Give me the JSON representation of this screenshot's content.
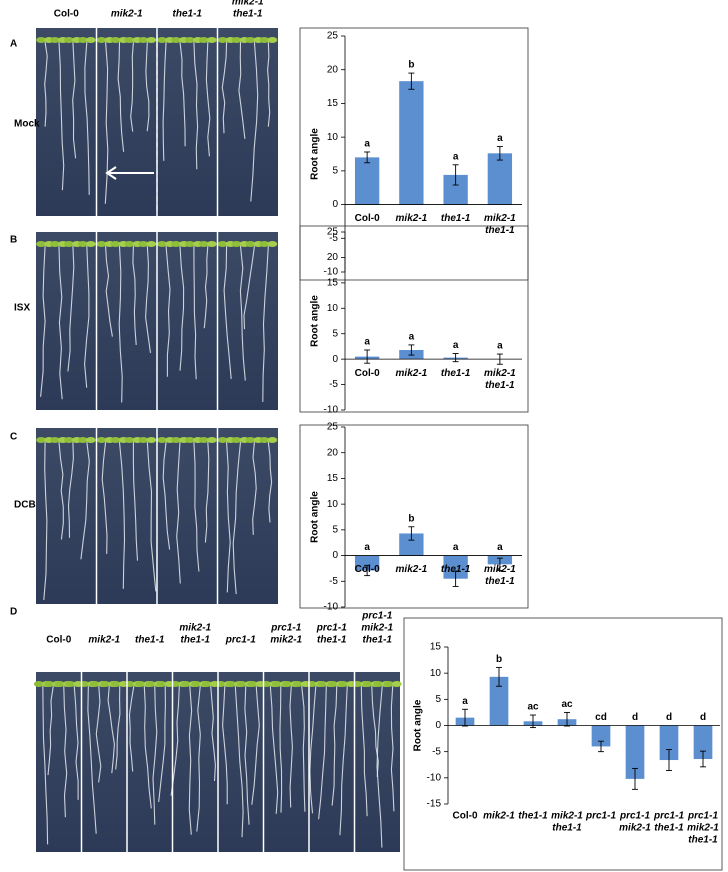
{
  "chart_data": [
    {
      "type": "bar",
      "panel": "A",
      "treatment": "Mock",
      "ylabel": "Root angle",
      "xlabel_position": "zero",
      "photo_labels": [
        [
          "Col-0"
        ],
        [
          "mik2-1"
        ],
        [
          "the1-1"
        ],
        [
          "mik2-1",
          "the1-1"
        ]
      ],
      "categories": [
        [
          "Col-0"
        ],
        [
          "mik2-1"
        ],
        [
          "the1-1"
        ],
        [
          "mik2-1",
          "the1-1"
        ]
      ],
      "values": [
        7,
        18.3,
        4.4,
        7.6
      ],
      "errors": [
        0.8,
        1.2,
        1.5,
        1.0
      ],
      "annotations": [
        "a",
        "b",
        "a",
        "a"
      ],
      "color": "#5b8fd0",
      "ylim": [
        -10,
        25
      ],
      "yticks": [
        -10,
        -5,
        0,
        5,
        10,
        15,
        20,
        25
      ]
    },
    {
      "type": "bar",
      "panel": "B",
      "treatment": "ISX",
      "ylabel": "Root angle",
      "xlabel_position": "zero",
      "categories": [
        [
          "Col-0"
        ],
        [
          "mik2-1"
        ],
        [
          "the1-1"
        ],
        [
          "mik2-1",
          "the1-1"
        ]
      ],
      "values": [
        0.5,
        1.8,
        0.3,
        0.0
      ],
      "errors": [
        1.3,
        1.0,
        0.8,
        1.0
      ],
      "annotations": [
        "a",
        "a",
        "a",
        "a"
      ],
      "color": "#5b8fd0",
      "ylim": [
        -10,
        25
      ],
      "yticks": [
        -10,
        -5,
        0,
        5,
        10,
        15,
        20,
        25
      ]
    },
    {
      "type": "bar",
      "panel": "C",
      "treatment": "DCB",
      "ylabel": "Root angle",
      "xlabel_position": "zero",
      "categories": [
        [
          "Col-0"
        ],
        [
          "mik2-1"
        ],
        [
          "the1-1"
        ],
        [
          "mik2-1",
          "the1-1"
        ]
      ],
      "values": [
        -2.9,
        4.3,
        -4.5,
        -1.7
      ],
      "errors": [
        1.0,
        1.3,
        1.5,
        1.2
      ],
      "annotations": [
        "a",
        "b",
        "a",
        "a"
      ],
      "color": "#5b8fd0",
      "ylim": [
        -10,
        25
      ],
      "yticks": [
        -10,
        -5,
        0,
        5,
        10,
        15,
        20,
        25
      ]
    },
    {
      "type": "bar",
      "panel": "D",
      "ylabel": "Root angle",
      "xlabel_position": "bottom",
      "photo_labels": [
        [
          "Col-0"
        ],
        [
          "mik2-1"
        ],
        [
          "the1-1"
        ],
        [
          "mik2-1",
          "the1-1"
        ],
        [
          "prc1-1"
        ],
        [
          "prc1-1",
          "mik2-1"
        ],
        [
          "prc1-1",
          "the1-1"
        ],
        [
          "prc1-1",
          "mik2-1",
          "the1-1"
        ]
      ],
      "categories": [
        [
          "Col-0"
        ],
        [
          "mik2-1"
        ],
        [
          "the1-1"
        ],
        [
          "mik2-1",
          "the1-1"
        ],
        [
          "prc1-1"
        ],
        [
          "prc1-1",
          "mik2-1"
        ],
        [
          "prc1-1",
          "the1-1"
        ],
        [
          "prc1-1",
          "mik2-1",
          "the1-1"
        ]
      ],
      "values": [
        1.5,
        9.3,
        0.8,
        1.2,
        -4.0,
        -10.2,
        -6.6,
        -6.4
      ],
      "errors": [
        1.6,
        1.8,
        1.2,
        1.3,
        1.0,
        2.0,
        2.0,
        1.5
      ],
      "annotations": [
        "a",
        "b",
        "ac",
        "ac",
        "cd",
        "d",
        "d",
        "d"
      ],
      "color": "#5b8fd0",
      "ylim": [
        -15,
        15
      ],
      "yticks": [
        -15,
        -10,
        -5,
        0,
        5,
        10,
        15
      ]
    }
  ]
}
